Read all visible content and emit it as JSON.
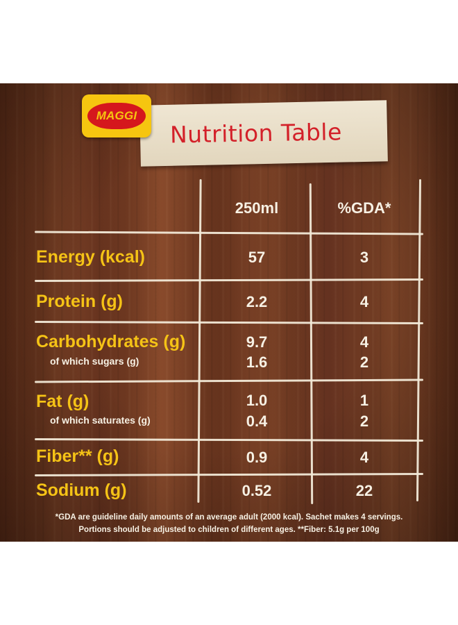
{
  "brand": {
    "logo_text": "MAGGI",
    "colors": {
      "yellow": "#f6c510",
      "red": "#d5171d"
    }
  },
  "title": "Nutrition Table",
  "columns": {
    "per_serving": "250ml",
    "gda": "%GDA*"
  },
  "rows": [
    {
      "label": "Energy (kcal)",
      "per_serving": "57",
      "gda": "3"
    },
    {
      "label": "Protein (g)",
      "per_serving": "2.2",
      "gda": "4"
    },
    {
      "label": "Carbohydrates (g)",
      "per_serving": "9.7",
      "gda": "4",
      "sub": {
        "label": "of which sugars (g)",
        "per_serving": "1.6",
        "gda": "2"
      }
    },
    {
      "label": "Fat (g)",
      "per_serving": "1.0",
      "gda": "1",
      "sub": {
        "label": "of which saturates (g)",
        "per_serving": "0.4",
        "gda": "2"
      }
    },
    {
      "label": "Fiber** (g)",
      "per_serving": "0.9",
      "gda": "4"
    },
    {
      "label": "Sodium (g)",
      "per_serving": "0.52",
      "gda": "22"
    }
  ],
  "footnote": {
    "line1": "*GDA are guideline daily amounts of an average adult (2000 kcal). Sachet makes 4 servings.",
    "line2": "Portions should be adjusted to children of different ages. **Fiber: 5.1g per 100g"
  }
}
